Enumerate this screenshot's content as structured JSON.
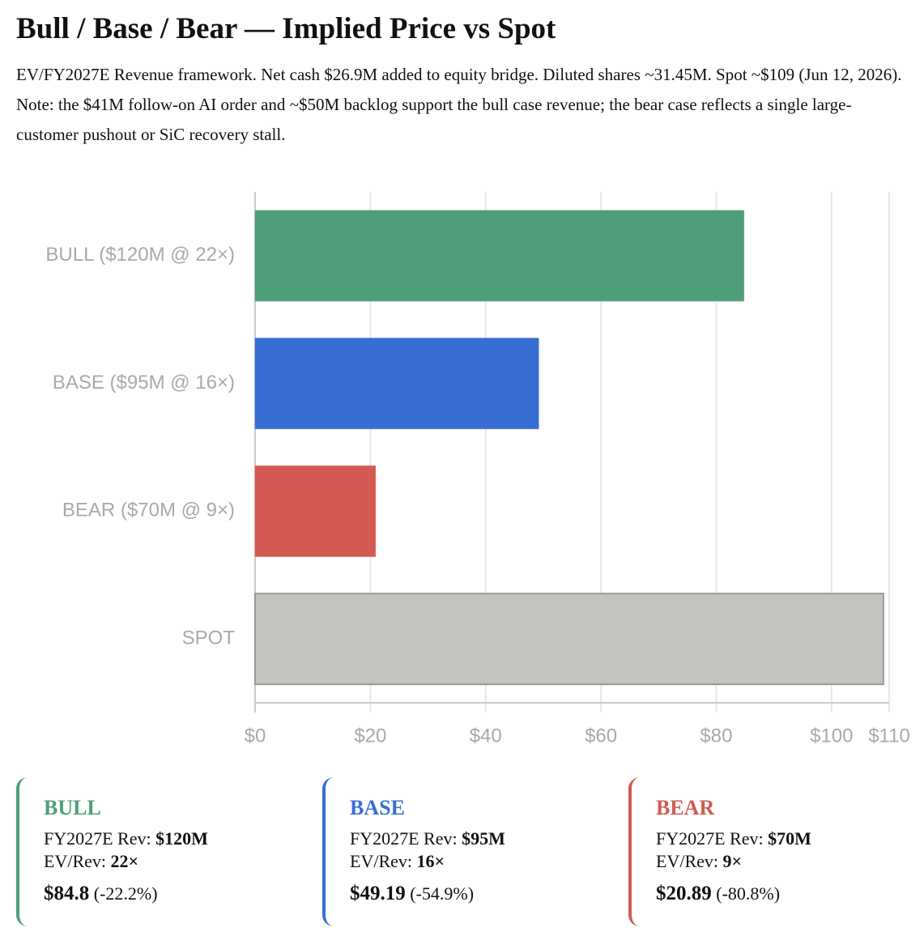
{
  "chart_data": {
    "type": "hbar",
    "title": "Bull / Base / Bear — Implied Price vs Spot",
    "subtitle": "EV/FY2027E Revenue framework. Net cash $26.9M added to equity bridge. Diluted shares ~31.45M. Spot ~$109 (Jun 12, 2026). Note: the $41M follow-on AI order and ~$50M backlog support the bull case revenue; the bear case reflects a single large-customer pushout or SiC recovery stall.",
    "categories": [
      "BULL ($120M @ 22×)",
      "BASE ($95M @ 16×)",
      "BEAR ($70M @ 9×)",
      "SPOT"
    ],
    "values": [
      84.8,
      49.19,
      20.89,
      109
    ],
    "colors": [
      "#4e9e7a",
      "#386ed4",
      "#d35a52",
      "#c4c4bf"
    ],
    "xlim": [
      0,
      110
    ],
    "xticks": [
      {
        "value": 0,
        "label": "$0"
      },
      {
        "value": 20,
        "label": "$20"
      },
      {
        "value": 40,
        "label": "$40"
      },
      {
        "value": 60,
        "label": "$60"
      },
      {
        "value": 80,
        "label": "$80"
      },
      {
        "value": 100,
        "label": "$100"
      },
      {
        "value": 110,
        "label": "$110"
      }
    ],
    "grid": true
  },
  "cards": [
    {
      "name": "BULL",
      "color": "#4e9e7a",
      "rev_label": "FY2027E Rev:",
      "rev": "$120M",
      "mult_label": "EV/Rev:",
      "mult": "22×",
      "price": "$84.8",
      "change": "(-22.2%)"
    },
    {
      "name": "BASE",
      "color": "#386ed4",
      "rev_label": "FY2027E Rev:",
      "rev": "$95M",
      "mult_label": "EV/Rev:",
      "mult": "16×",
      "price": "$49.19",
      "change": "(-54.9%)"
    },
    {
      "name": "BEAR",
      "color": "#d35a52",
      "rev_label": "FY2027E Rev:",
      "rev": "$70M",
      "mult_label": "EV/Rev:",
      "mult": "9×",
      "price": "$20.89",
      "change": "(-80.8%)"
    }
  ]
}
